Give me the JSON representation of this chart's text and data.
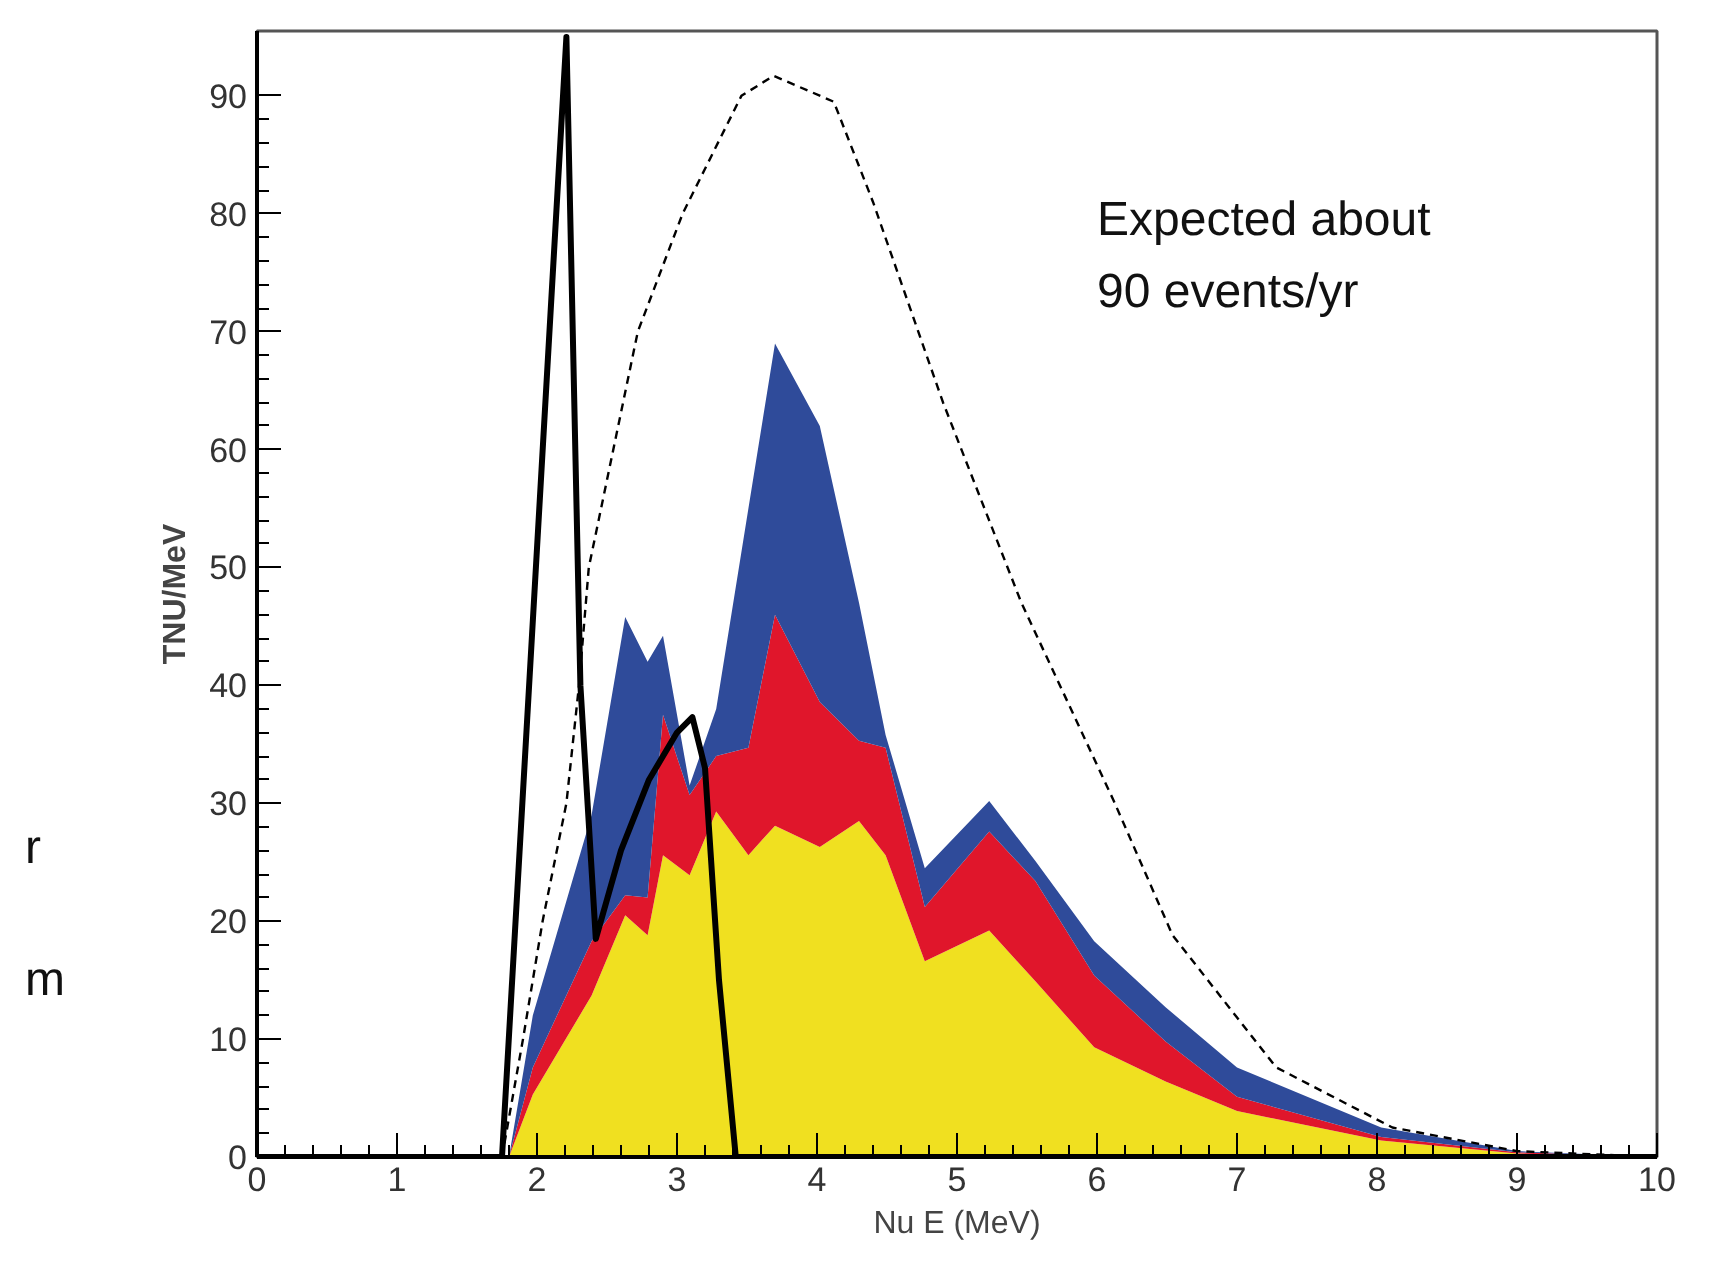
{
  "chart_data": {
    "type": "area",
    "stacked": true,
    "xlabel": "Nu E (MeV)",
    "ylabel": "TNU/MeV",
    "x": [
      0,
      1.8,
      1.97,
      2.39,
      2.63,
      2.79,
      2.9,
      3.09,
      3.28,
      3.51,
      3.7,
      4.02,
      4.3,
      4.49,
      4.77,
      5.23,
      5.56,
      5.98,
      6.49,
      7.0,
      8.03,
      9.0,
      10
    ],
    "series": [
      {
        "color": "#f0e020",
        "values": [
          0,
          0,
          5.3,
          13.7,
          20.5,
          18.8,
          25.6,
          23.9,
          29.3,
          25.6,
          28.1,
          26.3,
          28.5,
          25.6,
          16.6,
          19.2,
          14.9,
          9.3,
          6.4,
          3.9,
          1.4,
          0.3,
          0
        ]
      },
      {
        "color": "#e0162b",
        "values": [
          0,
          0,
          2.3,
          4.6,
          1.7,
          3.2,
          11.9,
          6.8,
          4.7,
          9.1,
          17.9,
          12.3,
          6.8,
          9.1,
          4.6,
          8.4,
          8.5,
          6.1,
          3.4,
          1.2,
          0.3,
          0.1,
          0
        ]
      },
      {
        "color": "#2f4b9a",
        "values": [
          0,
          0,
          4.4,
          10.7,
          23.6,
          20,
          6.7,
          0.8,
          4,
          20.3,
          23,
          23.4,
          11.7,
          1.1,
          3.3,
          2.6,
          1.7,
          2.9,
          2.9,
          2.5,
          0.8,
          0.1,
          0
        ]
      },
      {
        "type": "line",
        "line_style": "solid",
        "color": "#000000",
        "x": [
          0,
          1.75,
          2.21,
          2.31,
          2.42,
          2.6,
          2.8,
          3.0,
          3.11,
          3.2,
          3.3,
          3.42,
          10
        ],
        "values": [
          0,
          0,
          95,
          40,
          18.5,
          26,
          32,
          36,
          37.3,
          33,
          15,
          0,
          0
        ]
      },
      {
        "type": "line",
        "line_style": "dashed",
        "color": "#000000",
        "x": [
          1.75,
          1.9,
          2.04,
          2.21,
          2.3,
          2.37,
          2.72,
          3.04,
          3.46,
          3.69,
          4.12,
          4.4,
          4.9,
          5.46,
          6.12,
          6.54,
          7.28,
          8.11,
          9.0,
          10
        ],
        "values": [
          0,
          10,
          20,
          30,
          40,
          50,
          70,
          80,
          90,
          91.7,
          89.5,
          81,
          64,
          47,
          30.2,
          18.8,
          7.6,
          2.5,
          0.5,
          0
        ]
      }
    ],
    "xlim": [
      0,
      10
    ],
    "ylim": [
      0,
      95.5
    ],
    "xticks": [
      0,
      1,
      2,
      3,
      4,
      5,
      6,
      7,
      8,
      9,
      10
    ],
    "yticks": [
      0,
      10,
      20,
      30,
      40,
      50,
      60,
      70,
      80,
      90
    ],
    "grid": false,
    "annotations": [
      "Expected about\n90 events/yr",
      "r",
      "m"
    ]
  }
}
